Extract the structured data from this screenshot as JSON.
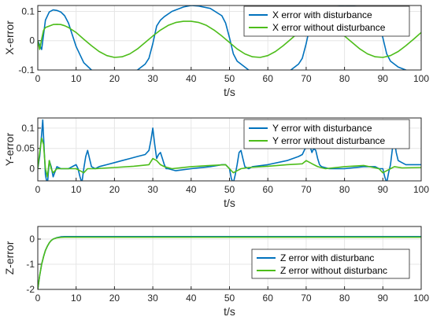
{
  "chart_data": [
    {
      "type": "line",
      "xlabel": "t/s",
      "ylabel": "X-error",
      "xlim": [
        0,
        100
      ],
      "ylim": [
        -0.1,
        0.12
      ],
      "xticks": [
        "0",
        "10",
        "20",
        "30",
        "40",
        "50",
        "60",
        "70",
        "80",
        "90",
        "100"
      ],
      "yticks": [
        "-0.1",
        "0",
        "0.1"
      ],
      "grid": true,
      "legend_position": "top-right",
      "series": [
        {
          "name": "X error with disturbance",
          "color": "#0072BD",
          "x": [
            0,
            1,
            2,
            3,
            4,
            5,
            6,
            7,
            8,
            9,
            10,
            12,
            14,
            16,
            18,
            20,
            22,
            24,
            26,
            28,
            29,
            30,
            31,
            32,
            33,
            35,
            38,
            40,
            42,
            45,
            48,
            49,
            50,
            51,
            52,
            54,
            56,
            58,
            60,
            62,
            64,
            66,
            68,
            69,
            70,
            71,
            72,
            73,
            75,
            78,
            80,
            82,
            85,
            88,
            89,
            90,
            91,
            92,
            94,
            96,
            98,
            100
          ],
          "y": [
            0,
            -0.03,
            0.07,
            0.098,
            0.105,
            0.103,
            0.098,
            0.085,
            0.06,
            0.02,
            -0.02,
            -0.075,
            -0.1,
            -0.113,
            -0.118,
            -0.12,
            -0.118,
            -0.112,
            -0.1,
            -0.08,
            -0.06,
            -0.01,
            0.05,
            0.07,
            0.082,
            0.1,
            0.115,
            0.12,
            0.118,
            0.11,
            0.085,
            0.06,
            0.01,
            -0.045,
            -0.07,
            -0.09,
            -0.11,
            -0.118,
            -0.12,
            -0.118,
            -0.112,
            -0.1,
            -0.08,
            -0.06,
            -0.01,
            0.05,
            0.07,
            0.082,
            0.1,
            0.115,
            0.12,
            0.118,
            0.11,
            0.085,
            0.06,
            0.01,
            -0.045,
            -0.07,
            -0.09,
            -0.1,
            -0.11,
            -0.118
          ]
        },
        {
          "name": "X error without disturbance",
          "color": "#4DBD1A",
          "x": [
            0,
            0.5,
            1,
            1.5,
            2,
            3,
            4,
            5,
            6,
            7,
            8,
            10,
            12,
            14,
            16,
            18,
            20,
            22,
            24,
            26,
            28,
            30,
            32,
            34,
            36,
            38,
            40,
            42,
            44,
            46,
            48,
            50,
            52,
            54,
            56,
            58,
            60,
            62,
            64,
            66,
            68,
            70,
            72,
            74,
            76,
            78,
            80,
            82,
            84,
            86,
            88,
            90,
            92,
            94,
            96,
            98,
            100
          ],
          "y": [
            0.0,
            -0.03,
            0.005,
            0.035,
            0.045,
            0.05,
            0.055,
            0.056,
            0.055,
            0.051,
            0.045,
            0.028,
            0.005,
            -0.017,
            -0.037,
            -0.051,
            -0.057,
            -0.055,
            -0.045,
            -0.028,
            -0.006,
            0.016,
            0.036,
            0.052,
            0.062,
            0.066,
            0.066,
            0.062,
            0.052,
            0.036,
            0.016,
            -0.006,
            -0.028,
            -0.045,
            -0.055,
            -0.057,
            -0.051,
            -0.037,
            -0.017,
            0.005,
            0.028,
            0.045,
            0.055,
            0.056,
            0.05,
            0.035,
            0.016,
            -0.006,
            -0.028,
            -0.045,
            -0.055,
            -0.057,
            -0.051,
            -0.037,
            -0.017,
            0.005,
            0.028
          ]
        }
      ]
    },
    {
      "type": "line",
      "xlabel": "t/s",
      "ylabel": "Y-error",
      "xlim": [
        0,
        100
      ],
      "ylim": [
        -0.03,
        0.125
      ],
      "xticks": [
        "0",
        "10",
        "20",
        "30",
        "40",
        "50",
        "60",
        "70",
        "80",
        "90",
        "100"
      ],
      "yticks": [
        "0",
        "0.05",
        "0.1"
      ],
      "grid": true,
      "legend_position": "top-right",
      "series": [
        {
          "name": "Y error with disturbance",
          "color": "#0072BD",
          "x": [
            0,
            0.5,
            1,
            1.3,
            1.7,
            2,
            2.5,
            3,
            3.5,
            4,
            5,
            6,
            7,
            8,
            9,
            10,
            10.5,
            11,
            11.5,
            12,
            12.5,
            13,
            13.5,
            14,
            15,
            16,
            18,
            20,
            22,
            24,
            26,
            28,
            29,
            29.5,
            30,
            30.5,
            31,
            31.5,
            32,
            32.5,
            33,
            33.5,
            34,
            36,
            40,
            45,
            48,
            49,
            50,
            50.5,
            51,
            51.5,
            52,
            52.5,
            53,
            53.5,
            54,
            55,
            56,
            60,
            65,
            68,
            69,
            70,
            70.5,
            71,
            71.5,
            72,
            72.5,
            73,
            73.5,
            74,
            76,
            80,
            85,
            88,
            89,
            90,
            90.5,
            91,
            91.5,
            92,
            92.5,
            93,
            93.5,
            94,
            95,
            96,
            98,
            100
          ],
          "y": [
            0,
            0.03,
            0.085,
            0.12,
            0.04,
            -0.015,
            -0.04,
            0.02,
            0.005,
            -0.02,
            0.005,
            0.0,
            0.0,
            0.0,
            0.005,
            0.01,
            0.0,
            -0.02,
            -0.035,
            0.0,
            0.03,
            0.045,
            0.025,
            0.005,
            0.0,
            0.005,
            0.01,
            0.015,
            0.02,
            0.025,
            0.03,
            0.035,
            0.045,
            0.07,
            0.1,
            0.06,
            0.025,
            0.035,
            0.04,
            0.025,
            0.01,
            0.0,
            0.0,
            -0.005,
            0.0,
            0.005,
            0.01,
            0.01,
            0.0,
            -0.025,
            -0.035,
            -0.015,
            0.01,
            0.04,
            0.045,
            0.025,
            0.005,
            0.0,
            0.005,
            0.01,
            0.02,
            0.03,
            0.035,
            0.055,
            0.095,
            0.055,
            0.04,
            0.05,
            0.045,
            0.025,
            0.01,
            0.005,
            0.0,
            0.0,
            0.005,
            0.005,
            0.0,
            0.0,
            -0.02,
            -0.035,
            -0.01,
            0.01,
            0.05,
            0.07,
            0.04,
            0.02,
            0.015,
            0.01,
            0.01,
            0.01
          ]
        },
        {
          "name": "Y error without disturbance",
          "color": "#4DBD1A",
          "x": [
            0,
            0.5,
            1,
            1.5,
            2,
            2.5,
            3,
            3.5,
            4,
            5,
            6,
            8,
            10,
            11,
            12,
            13,
            15,
            20,
            25,
            29,
            30,
            31,
            32,
            33,
            35,
            40,
            45,
            49,
            50,
            51,
            52,
            53,
            55,
            60,
            65,
            69,
            70,
            71,
            72,
            73,
            75,
            80,
            85,
            89,
            90,
            91,
            92,
            93,
            95,
            100
          ],
          "y": [
            0,
            0.04,
            0.075,
            0.06,
            0.0,
            -0.02,
            0.02,
            0.0,
            -0.01,
            0.0,
            0.0,
            0.0,
            0.0,
            -0.005,
            -0.01,
            0.0,
            0.0,
            0.003,
            0.006,
            0.01,
            0.025,
            0.02,
            0.01,
            0.005,
            0.0,
            0.005,
            0.008,
            0.01,
            0.0,
            -0.01,
            -0.005,
            0.0,
            0.003,
            0.006,
            0.01,
            0.012,
            0.02,
            0.015,
            0.01,
            0.005,
            0.0,
            0.005,
            0.008,
            0.0,
            -0.01,
            -0.005,
            0.0,
            0.005,
            0.002,
            0.003
          ]
        }
      ]
    },
    {
      "type": "line",
      "xlabel": "t/s",
      "ylabel": "Z-error",
      "xlim": [
        0,
        100
      ],
      "ylim": [
        -2,
        0.5
      ],
      "xticks": [
        "0",
        "10",
        "20",
        "30",
        "40",
        "50",
        "60",
        "70",
        "80",
        "90",
        "100"
      ],
      "yticks": [
        "-2",
        "-1",
        "0"
      ],
      "grid": true,
      "legend_position": "right",
      "series": [
        {
          "name": "Z error with disturbanc",
          "color": "#0072BD",
          "x": [
            0,
            0.5,
            1,
            1.5,
            2,
            2.5,
            3,
            3.5,
            4,
            5,
            6,
            7,
            8,
            10,
            20,
            40,
            60,
            80,
            100
          ],
          "y": [
            -2.0,
            -1.45,
            -1.0,
            -0.7,
            -0.45,
            -0.28,
            -0.15,
            -0.06,
            0.0,
            0.06,
            0.09,
            0.1,
            0.1,
            0.1,
            0.1,
            0.1,
            0.1,
            0.1,
            0.1
          ]
        },
        {
          "name": "Z error without disturbanc",
          "color": "#4DBD1A",
          "x": [
            0,
            0.5,
            1,
            1.5,
            2,
            2.5,
            3,
            3.5,
            4,
            5,
            6,
            7,
            8,
            10,
            20,
            40,
            60,
            80,
            100
          ],
          "y": [
            -2.0,
            -1.45,
            -1.0,
            -0.7,
            -0.45,
            -0.28,
            -0.15,
            -0.06,
            0.0,
            0.05,
            0.07,
            0.075,
            0.075,
            0.075,
            0.075,
            0.075,
            0.075,
            0.075,
            0.075
          ]
        }
      ]
    }
  ]
}
